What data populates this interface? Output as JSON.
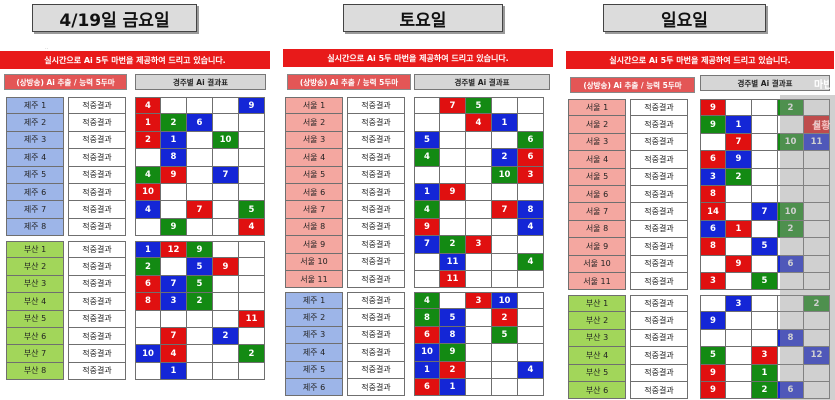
{
  "headers": [
    "4/19일 금요일",
    "토요일",
    "일요일"
  ],
  "banner_text": "실시간으로 Ai 5두 마번을 제공하여 드리고 있습니다.",
  "left_tag": "(상방송) Ai 추출 / 능력 5두마",
  "right_tag": "경주별 Ai 결과표",
  "result_label": "적중결과",
  "small_mark": "ᆢ",
  "overlay_text_1": "마빈",
  "overlay_text_2": "실황",
  "colors": {
    "red": "#e01010",
    "green": "#138a13",
    "blue": "#1426d6",
    "banner": "#e81a1a"
  },
  "fri": {
    "top_labels": [
      "제주 1",
      "제주 2",
      "제주 3",
      "제주 4",
      "제주 5",
      "제주 6",
      "제주 7",
      "제주 8"
    ],
    "top_grid": [
      [
        [
          "4",
          "r"
        ],
        null,
        null,
        null,
        [
          "9",
          "b"
        ]
      ],
      [
        [
          "1",
          "r"
        ],
        [
          "2",
          "g"
        ],
        [
          "6",
          "b"
        ],
        null,
        null
      ],
      [
        [
          "2",
          "r"
        ],
        [
          "1",
          "b"
        ],
        null,
        [
          "10",
          "g"
        ],
        null
      ],
      [
        null,
        [
          "8",
          "b"
        ],
        null,
        null,
        null
      ],
      [
        [
          "4",
          "g"
        ],
        [
          "9",
          "r"
        ],
        null,
        [
          "7",
          "b"
        ],
        null
      ],
      [
        [
          "10",
          "r"
        ],
        null,
        null,
        null,
        null
      ],
      [
        [
          "4",
          "b"
        ],
        null,
        [
          "7",
          "r"
        ],
        null,
        [
          "5",
          "g"
        ]
      ],
      [
        null,
        [
          "9",
          "g"
        ],
        null,
        null,
        [
          "4",
          "r"
        ]
      ]
    ],
    "bottom_labels": [
      "부산 1",
      "부산 2",
      "부산 3",
      "부산 4",
      "부산 5",
      "부산 6",
      "부산 7",
      "부산 8"
    ],
    "bottom_grid": [
      [
        [
          "1",
          "b"
        ],
        [
          "12",
          "r"
        ],
        [
          "9",
          "g"
        ],
        null,
        null
      ],
      [
        [
          "2",
          "g"
        ],
        null,
        [
          "5",
          "b"
        ],
        [
          "9",
          "r"
        ],
        null
      ],
      [
        [
          "6",
          "r"
        ],
        [
          "7",
          "b"
        ],
        [
          "5",
          "g"
        ],
        null,
        null
      ],
      [
        [
          "8",
          "r"
        ],
        [
          "3",
          "b"
        ],
        [
          "2",
          "g"
        ],
        null,
        null
      ],
      [
        null,
        null,
        null,
        null,
        [
          "11",
          "r"
        ]
      ],
      [
        null,
        [
          "7",
          "r"
        ],
        null,
        [
          "2",
          "b"
        ],
        null
      ],
      [
        [
          "10",
          "b"
        ],
        [
          "4",
          "r"
        ],
        null,
        null,
        [
          "2",
          "g"
        ]
      ],
      [
        null,
        [
          "1",
          "b"
        ],
        null,
        null,
        null
      ]
    ]
  },
  "sat": {
    "top_labels": [
      "서울 1",
      "서울 2",
      "서울 3",
      "서울 4",
      "서울 5",
      "서울 6",
      "서울 7",
      "서울 8",
      "서울 9",
      "서울 10",
      "서울 11"
    ],
    "top_grid": [
      [
        null,
        [
          "7",
          "r"
        ],
        [
          "5",
          "g"
        ],
        null,
        null
      ],
      [
        null,
        null,
        [
          "4",
          "r"
        ],
        [
          "1",
          "b"
        ],
        null
      ],
      [
        [
          "5",
          "b"
        ],
        null,
        null,
        null,
        [
          "6",
          "g"
        ]
      ],
      [
        [
          "4",
          "g"
        ],
        null,
        null,
        [
          "2",
          "b"
        ],
        [
          "6",
          "r"
        ]
      ],
      [
        null,
        null,
        null,
        [
          "10",
          "g"
        ],
        [
          "3",
          "r"
        ]
      ],
      [
        [
          "1",
          "b"
        ],
        [
          "9",
          "r"
        ],
        null,
        null,
        null
      ],
      [
        [
          "4",
          "g"
        ],
        null,
        null,
        [
          "7",
          "r"
        ],
        [
          "8",
          "b"
        ]
      ],
      [
        [
          "9",
          "r"
        ],
        null,
        null,
        null,
        [
          "4",
          "b"
        ]
      ],
      [
        [
          "7",
          "b"
        ],
        [
          "2",
          "g"
        ],
        [
          "3",
          "r"
        ],
        null,
        null
      ],
      [
        null,
        [
          "11",
          "b"
        ],
        null,
        null,
        [
          "4",
          "g"
        ]
      ],
      [
        null,
        [
          "11",
          "r"
        ],
        null,
        null,
        null
      ]
    ],
    "bottom_labels": [
      "제주 1",
      "제주 2",
      "제주 3",
      "제주 4",
      "제주 5",
      "제주 6"
    ],
    "bottom_grid": [
      [
        [
          "4",
          "g"
        ],
        null,
        [
          "3",
          "r"
        ],
        [
          "10",
          "b"
        ],
        null
      ],
      [
        [
          "8",
          "g"
        ],
        [
          "5",
          "b"
        ],
        null,
        [
          "2",
          "r"
        ],
        null
      ],
      [
        [
          "6",
          "r"
        ],
        [
          "8",
          "b"
        ],
        null,
        [
          "5",
          "g"
        ],
        null
      ],
      [
        [
          "10",
          "b"
        ],
        [
          "9",
          "g"
        ],
        null,
        null,
        null
      ],
      [
        [
          "1",
          "b"
        ],
        [
          "2",
          "r"
        ],
        null,
        null,
        [
          "4",
          "b"
        ]
      ],
      [
        [
          "6",
          "r"
        ],
        [
          "1",
          "b"
        ],
        null,
        null,
        null
      ]
    ]
  },
  "sun": {
    "top_labels": [
      "서울 1",
      "서울 2",
      "서울 3",
      "서울 4",
      "서울 5",
      "서울 6",
      "서울 7",
      "서울 8",
      "서울 9",
      "서울 10",
      "서울 11"
    ],
    "top_grid": [
      [
        [
          "9",
          "r"
        ],
        null,
        null,
        [
          "2",
          "g"
        ],
        null
      ],
      [
        [
          "9",
          "g"
        ],
        [
          "1",
          "b"
        ],
        null,
        null,
        [
          "6",
          "r"
        ]
      ],
      [
        null,
        [
          "7",
          "r"
        ],
        null,
        [
          "10",
          "g"
        ],
        [
          "11",
          "b"
        ]
      ],
      [
        [
          "6",
          "r"
        ],
        [
          "9",
          "b"
        ],
        null,
        null,
        null
      ],
      [
        [
          "3",
          "b"
        ],
        [
          "2",
          "g"
        ],
        null,
        null,
        null
      ],
      [
        [
          "8",
          "r"
        ],
        null,
        null,
        null,
        null
      ],
      [
        [
          "14",
          "r"
        ],
        null,
        [
          "7",
          "b"
        ],
        [
          "10",
          "g"
        ],
        null
      ],
      [
        [
          "6",
          "b"
        ],
        [
          "1",
          "r"
        ],
        null,
        [
          "2",
          "g"
        ],
        null
      ],
      [
        [
          "8",
          "r"
        ],
        null,
        [
          "5",
          "b"
        ],
        null,
        null
      ],
      [
        null,
        [
          "9",
          "r"
        ],
        null,
        [
          "6",
          "b"
        ],
        null
      ],
      [
        [
          "3",
          "r"
        ],
        null,
        [
          "5",
          "g"
        ],
        null,
        null
      ]
    ],
    "bottom_labels": [
      "부산 1",
      "부산 2",
      "부산 3",
      "부산 4",
      "부산 5",
      "부산 6"
    ],
    "bottom_grid": [
      [
        null,
        [
          "3",
          "b"
        ],
        null,
        null,
        [
          "2",
          "g"
        ]
      ],
      [
        [
          "9",
          "b"
        ],
        null,
        null,
        null,
        null
      ],
      [
        null,
        null,
        null,
        [
          "8",
          "b"
        ],
        null
      ],
      [
        [
          "5",
          "g"
        ],
        null,
        [
          "3",
          "r"
        ],
        null,
        [
          "12",
          "b"
        ]
      ],
      [
        [
          "9",
          "r"
        ],
        null,
        [
          "1",
          "g"
        ],
        null,
        null
      ],
      [
        [
          "9",
          "r"
        ],
        null,
        [
          "2",
          "g"
        ],
        [
          "6",
          "b"
        ],
        null
      ]
    ]
  }
}
